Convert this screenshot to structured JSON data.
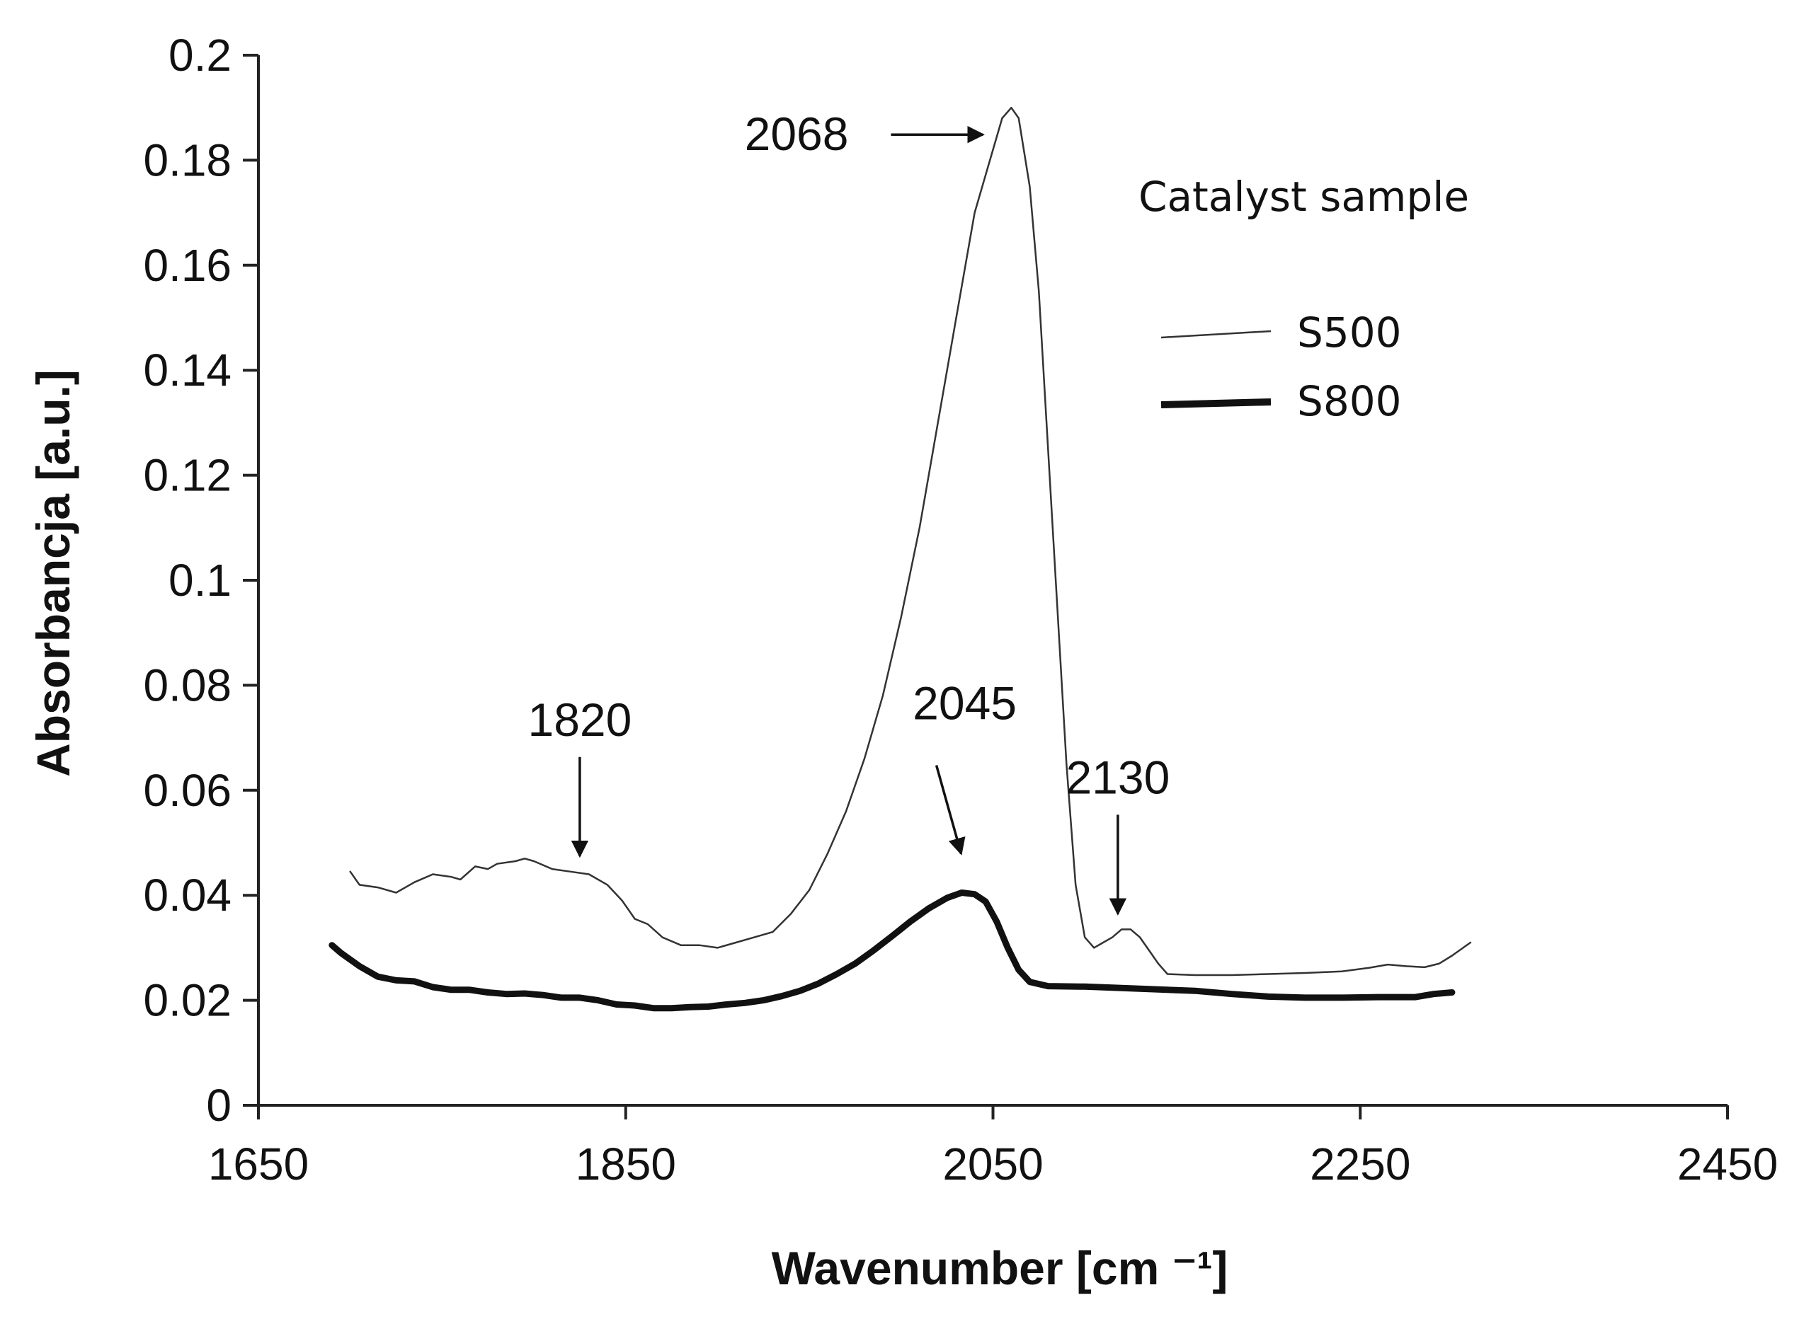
{
  "chart_data": {
    "type": "line",
    "xlabel": "Wavenumber [cm ⁻¹]",
    "ylabel": "Absorbancja [a.u.]",
    "xlim": [
      1650,
      2450
    ],
    "ylim": [
      0,
      0.2
    ],
    "x_ticks": [
      1650,
      1850,
      2050,
      2250,
      2450
    ],
    "x_tick_labels": [
      "1650",
      "1850",
      "2050",
      "2250",
      "2450"
    ],
    "y_ticks": [
      0,
      0.02,
      0.04,
      0.06,
      0.08,
      0.1,
      0.12,
      0.14,
      0.16,
      0.18,
      0.2
    ],
    "y_tick_labels": [
      "0",
      "0.02",
      "0.04",
      "0.06",
      "0.08",
      "0.1",
      "0.12",
      "0.14",
      "0.16",
      "0.18",
      "0.2"
    ],
    "legend_title": "Catalyst sample",
    "series": [
      {
        "name": "S500",
        "line_weight": "thin",
        "color": "#333333",
        "points": [
          [
            1700,
            0.0445
          ],
          [
            1705,
            0.042
          ],
          [
            1715,
            0.0415
          ],
          [
            1725,
            0.0405
          ],
          [
            1735,
            0.0425
          ],
          [
            1745,
            0.044
          ],
          [
            1755,
            0.0435
          ],
          [
            1760,
            0.043
          ],
          [
            1768,
            0.0455
          ],
          [
            1775,
            0.045
          ],
          [
            1780,
            0.046
          ],
          [
            1790,
            0.0465
          ],
          [
            1795,
            0.047
          ],
          [
            1800,
            0.0465
          ],
          [
            1810,
            0.045
          ],
          [
            1820,
            0.0445
          ],
          [
            1830,
            0.044
          ],
          [
            1840,
            0.042
          ],
          [
            1848,
            0.039
          ],
          [
            1855,
            0.0355
          ],
          [
            1862,
            0.0345
          ],
          [
            1870,
            0.032
          ],
          [
            1880,
            0.0305
          ],
          [
            1890,
            0.0305
          ],
          [
            1900,
            0.03
          ],
          [
            1910,
            0.031
          ],
          [
            1920,
            0.032
          ],
          [
            1930,
            0.033
          ],
          [
            1940,
            0.0365
          ],
          [
            1950,
            0.041
          ],
          [
            1960,
            0.048
          ],
          [
            1970,
            0.056
          ],
          [
            1980,
            0.066
          ],
          [
            1990,
            0.078
          ],
          [
            2000,
            0.093
          ],
          [
            2010,
            0.11
          ],
          [
            2020,
            0.13
          ],
          [
            2030,
            0.15
          ],
          [
            2040,
            0.17
          ],
          [
            2050,
            0.182
          ],
          [
            2055,
            0.188
          ],
          [
            2060,
            0.19
          ],
          [
            2064,
            0.188
          ],
          [
            2070,
            0.175
          ],
          [
            2075,
            0.155
          ],
          [
            2080,
            0.125
          ],
          [
            2085,
            0.095
          ],
          [
            2090,
            0.065
          ],
          [
            2095,
            0.042
          ],
          [
            2100,
            0.032
          ],
          [
            2105,
            0.03
          ],
          [
            2110,
            0.031
          ],
          [
            2115,
            0.032
          ],
          [
            2120,
            0.0335
          ],
          [
            2125,
            0.0335
          ],
          [
            2130,
            0.032
          ],
          [
            2135,
            0.0295
          ],
          [
            2140,
            0.027
          ],
          [
            2145,
            0.025
          ],
          [
            2160,
            0.0248
          ],
          [
            2180,
            0.0248
          ],
          [
            2200,
            0.025
          ],
          [
            2220,
            0.0252
          ],
          [
            2240,
            0.0255
          ],
          [
            2255,
            0.0262
          ],
          [
            2265,
            0.0268
          ],
          [
            2275,
            0.0265
          ],
          [
            2285,
            0.0263
          ],
          [
            2293,
            0.027
          ],
          [
            2300,
            0.0285
          ],
          [
            2310,
            0.031
          ]
        ]
      },
      {
        "name": "S800",
        "line_weight": "thick",
        "color": "#111111",
        "points": [
          [
            1690,
            0.0305
          ],
          [
            1695,
            0.029
          ],
          [
            1705,
            0.0265
          ],
          [
            1715,
            0.0245
          ],
          [
            1725,
            0.0238
          ],
          [
            1735,
            0.0236
          ],
          [
            1745,
            0.0225
          ],
          [
            1755,
            0.022
          ],
          [
            1765,
            0.022
          ],
          [
            1775,
            0.0215
          ],
          [
            1785,
            0.0212
          ],
          [
            1795,
            0.0213
          ],
          [
            1805,
            0.021
          ],
          [
            1815,
            0.0205
          ],
          [
            1825,
            0.0205
          ],
          [
            1835,
            0.02
          ],
          [
            1845,
            0.0192
          ],
          [
            1855,
            0.019
          ],
          [
            1865,
            0.0185
          ],
          [
            1875,
            0.0185
          ],
          [
            1885,
            0.0187
          ],
          [
            1895,
            0.0188
          ],
          [
            1905,
            0.0192
          ],
          [
            1915,
            0.0195
          ],
          [
            1925,
            0.02
          ],
          [
            1935,
            0.0208
          ],
          [
            1945,
            0.0218
          ],
          [
            1955,
            0.0232
          ],
          [
            1965,
            0.025
          ],
          [
            1975,
            0.027
          ],
          [
            1985,
            0.0295
          ],
          [
            1995,
            0.0322
          ],
          [
            2005,
            0.035
          ],
          [
            2015,
            0.0375
          ],
          [
            2025,
            0.0395
          ],
          [
            2033,
            0.0405
          ],
          [
            2040,
            0.0402
          ],
          [
            2046,
            0.0388
          ],
          [
            2052,
            0.035
          ],
          [
            2058,
            0.03
          ],
          [
            2064,
            0.0258
          ],
          [
            2070,
            0.0235
          ],
          [
            2080,
            0.0227
          ],
          [
            2100,
            0.0226
          ],
          [
            2130,
            0.0222
          ],
          [
            2160,
            0.0218
          ],
          [
            2180,
            0.0212
          ],
          [
            2200,
            0.0207
          ],
          [
            2220,
            0.0205
          ],
          [
            2240,
            0.0205
          ],
          [
            2260,
            0.0206
          ],
          [
            2280,
            0.0206
          ],
          [
            2290,
            0.0212
          ],
          [
            2300,
            0.0215
          ]
        ]
      }
    ],
    "annotations": [
      {
        "label": "2068",
        "arrow": "right",
        "peak_x": 2060,
        "peak_y": 0.19,
        "series": "S500"
      },
      {
        "label": "1820",
        "arrow": "down",
        "peak_x": 1825,
        "peak_y": 0.0445,
        "series": "S500"
      },
      {
        "label": "2045",
        "arrow": "diagonal",
        "peak_x": 2035,
        "peak_y": 0.0405,
        "series": "S800"
      },
      {
        "label": "2130",
        "arrow": "down",
        "peak_x": 2118,
        "peak_y": 0.0335,
        "series": "S500"
      }
    ]
  }
}
